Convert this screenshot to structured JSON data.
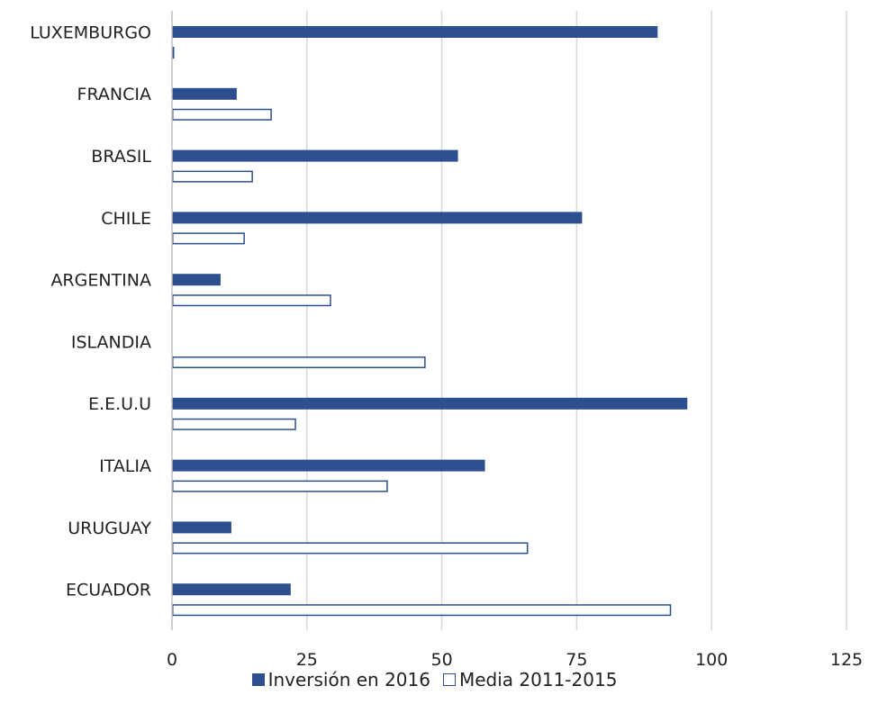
{
  "chart_data": {
    "type": "bar",
    "orientation": "horizontal",
    "categories": [
      "LUXEMBURGO",
      "FRANCIA",
      "BRASIL",
      "CHILE",
      "ARGENTINA",
      "ISLANDIA",
      "E.E.U.U",
      "ITALIA",
      "URUGUAY",
      "ECUADOR"
    ],
    "series": [
      {
        "name": "Inversión en 2016",
        "style": "filled",
        "color": "#2e4f8f",
        "values": [
          90,
          12,
          53,
          76,
          9,
          0,
          95.5,
          58,
          11,
          22
        ]
      },
      {
        "name": "Media 2011-2015",
        "style": "outline",
        "color": "#2e4f8f",
        "values": [
          0.3,
          18.5,
          15,
          13.5,
          29.5,
          47,
          23,
          40,
          66,
          92.5
        ]
      }
    ],
    "xlim": [
      0,
      125
    ],
    "xticks": [
      "0",
      "25",
      "50",
      "75",
      "100",
      "125"
    ],
    "title": "",
    "xlabel": "",
    "ylabel": "",
    "grid": "vertical",
    "legend_position": "bottom"
  }
}
